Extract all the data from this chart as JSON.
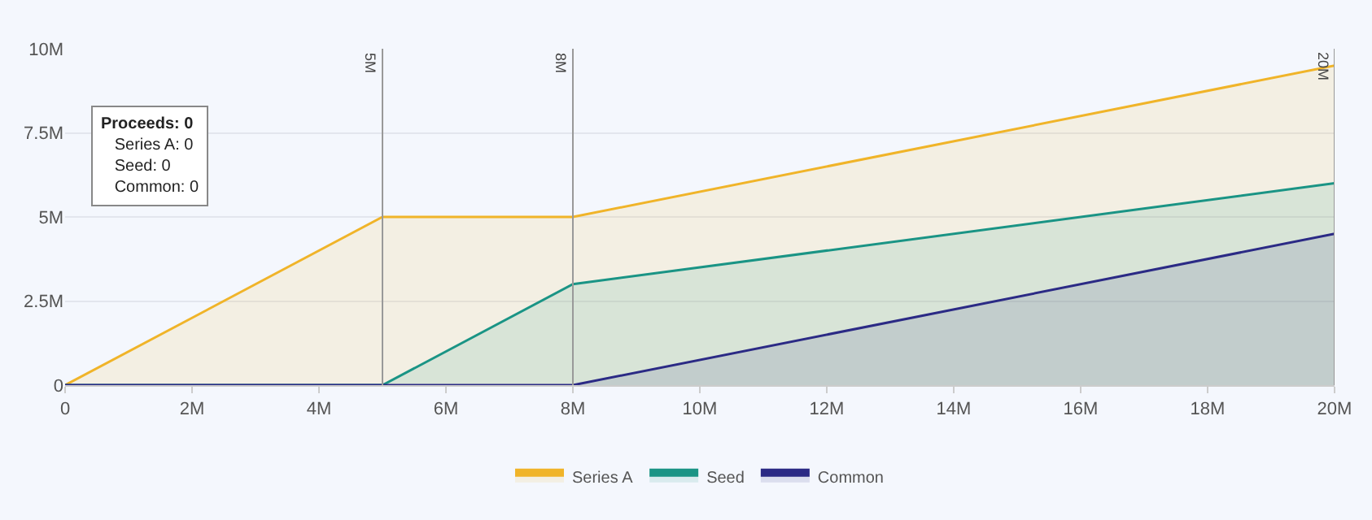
{
  "chart_data": {
    "type": "area",
    "x": [
      0,
      5,
      8,
      20
    ],
    "series": [
      {
        "name": "Series A",
        "color": "#f0b429",
        "values": [
          0,
          5,
          5,
          9.5
        ]
      },
      {
        "name": "Seed",
        "color": "#1a9485",
        "values": [
          0,
          0,
          3,
          6
        ]
      },
      {
        "name": "Common",
        "color": "#2b2a85",
        "values": [
          0,
          0,
          0,
          4.5
        ]
      }
    ],
    "xlim": [
      0,
      20
    ],
    "ylim": [
      0,
      10
    ],
    "xticks": [
      0,
      {
        "value": 2,
        "label": "2M"
      },
      {
        "value": 4,
        "label": "4M"
      },
      {
        "value": 6,
        "label": "6M"
      },
      {
        "value": 8,
        "label": "8M"
      },
      {
        "value": 10,
        "label": "10M"
      },
      {
        "value": 12,
        "label": "12M"
      },
      {
        "value": 14,
        "label": "14M"
      },
      {
        "value": 16,
        "label": "16M"
      },
      {
        "value": 18,
        "label": "18M"
      },
      {
        "value": 20,
        "label": "20M"
      }
    ],
    "yticks": [
      0,
      {
        "value": 2.5,
        "label": "2.5M"
      },
      {
        "value": 5,
        "label": "5M"
      },
      {
        "value": 7.5,
        "label": "7.5M"
      },
      {
        "value": 10,
        "label": "10M"
      }
    ],
    "ref_lines": [
      {
        "axis": "x",
        "value": 5,
        "label": "5M",
        "color": "#999999"
      },
      {
        "axis": "x",
        "value": 8,
        "label": "8M",
        "color": "#999999"
      },
      {
        "axis": "x",
        "value": 20,
        "label": "20M",
        "color": "#999999"
      }
    ],
    "annotations": [
      "Proceeds: 0",
      "Series A: 0",
      "Seed: 0",
      "Common: 0"
    ],
    "grid": "y",
    "legend": "bottom",
    "marker": "none",
    "line_style": "solid"
  }
}
